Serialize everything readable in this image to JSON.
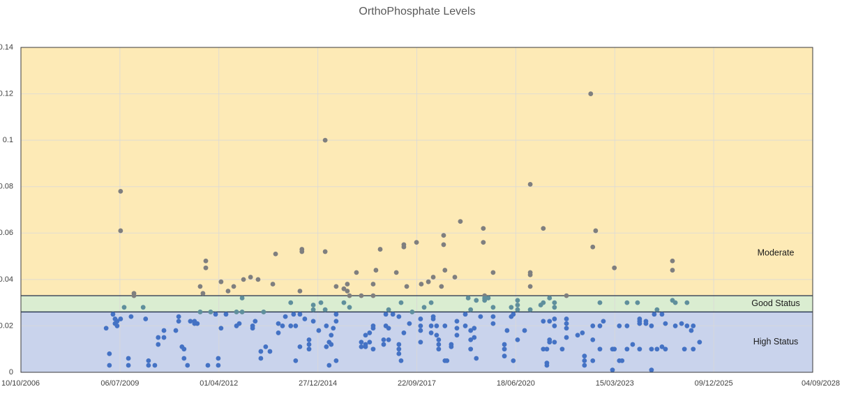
{
  "chart_data": {
    "type": "scatter",
    "title": "OrthoPhosphate Levels",
    "xlim": [
      "10/10/2006",
      "04/09/2028"
    ],
    "xticks": [
      "10/10/2006",
      "06/07/2009",
      "01/04/2012",
      "27/12/2014",
      "22/09/2017",
      "18/06/2020",
      "15/03/2023",
      "09/12/2025",
      "04/09/2028"
    ],
    "ylim": [
      0,
      0.14
    ],
    "yticks": [
      0,
      0.02,
      0.04,
      0.06,
      0.08,
      0.1,
      0.12,
      0.14
    ],
    "grid": true,
    "bands": [
      {
        "label": "High Status",
        "from": 0,
        "to": 0.026,
        "color": "#c9d3ec",
        "point_color": "#4472c4"
      },
      {
        "label": "Good Status",
        "from": 0.026,
        "to": 0.033,
        "color": "#daedd1",
        "point_color": "#5f8f9c"
      },
      {
        "label": "Moderate",
        "from": 0.033,
        "to": 0.14,
        "color": "#fdeab6",
        "point_color": "#7f7f7f"
      }
    ],
    "x": [
      "17/02/2009",
      "22/03/2009",
      "22/03/2009",
      "27/04/2009",
      "18/05/2009",
      "18/05/2009",
      "08/06/2009",
      "08/06/2009",
      "13/07/2009",
      "13/07/2009",
      "13/07/2009",
      "18/08/2009",
      "30/09/2009",
      "30/09/2009",
      "27/10/2009",
      "25/11/2009",
      "25/11/2009",
      "26/02/2010",
      "23/03/2010",
      "21/04/2010",
      "21/04/2010",
      "24/06/2010",
      "28/07/2010",
      "28/07/2010",
      "24/09/2010",
      "24/09/2010",
      "22/01/2011",
      "20/02/2011",
      "20/02/2011",
      "25/03/2011",
      "15/04/2011",
      "15/04/2011",
      "20/05/2011",
      "18/06/2011",
      "30/07/2011",
      "30/07/2011",
      "27/08/2011",
      "25/09/2011",
      "25/09/2011",
      "23/10/2011",
      "21/11/2011",
      "21/11/2011",
      "12/12/2011",
      "09/01/2012",
      "28/02/2012",
      "26/03/2012",
      "26/03/2012",
      "23/04/2012",
      "23/04/2012",
      "12/06/2012",
      "03/07/2012",
      "29/08/2012",
      "26/09/2012",
      "26/09/2012",
      "24/10/2012",
      "22/11/2012",
      "22/11/2012",
      "06/12/2012",
      "15/02/2013",
      "08/03/2013",
      "08/03/2013",
      "03/04/2013",
      "02/05/2013",
      "30/05/2013",
      "30/05/2013",
      "27/06/2013",
      "18/07/2013",
      "30/08/2013",
      "28/09/2013",
      "26/10/2013",
      "23/11/2013",
      "23/11/2013",
      "04/01/2014",
      "02/02/2014",
      "28/03/2014",
      "28/03/2014",
      "26/04/2014",
      "17/05/2014",
      "17/05/2014",
      "29/06/2014",
      "29/06/2014",
      "29/06/2014",
      "19/07/2014",
      "19/07/2014",
      "17/08/2014",
      "29/09/2014",
      "29/09/2014",
      "29/09/2014",
      "11/11/2014",
      "11/11/2014",
      "11/11/2014",
      "05/01/2015",
      "27/01/2015",
      "11/03/2015",
      "11/03/2015",
      "11/03/2015",
      "23/03/2015",
      "23/03/2015",
      "20/04/2015",
      "20/04/2015",
      "11/05/2015",
      "11/05/2015",
      "01/06/2015",
      "30/06/2015",
      "30/06/2015",
      "30/06/2015",
      "30/06/2015",
      "16/09/2015",
      "16/09/2015",
      "21/10/2015",
      "21/10/2015",
      "12/11/2015",
      "12/11/2015",
      "21/01/2016",
      "10/03/2016",
      "10/03/2016",
      "10/03/2016",
      "22/04/2016",
      "22/04/2016",
      "22/04/2016",
      "02/06/2016",
      "02/06/2016",
      "08/07/2016",
      "08/07/2016",
      "08/07/2016",
      "08/07/2016",
      "08/07/2016",
      "05/08/2016",
      "17/09/2016",
      "22/10/2016",
      "22/10/2016",
      "13/11/2016",
      "13/11/2016",
      "11/12/2016",
      "11/12/2016",
      "11/12/2016",
      "23/01/2017",
      "27/02/2017",
      "25/03/2017",
      "25/03/2017",
      "25/03/2017",
      "25/03/2017",
      "16/04/2017",
      "16/04/2017",
      "14/05/2017",
      "14/05/2017",
      "14/05/2017",
      "12/06/2017",
      "09/07/2017",
      "06/08/2017",
      "19/09/2017",
      "30/10/2017",
      "30/10/2017",
      "30/10/2017",
      "30/10/2017",
      "06/11/2017",
      "05/12/2017",
      "17/01/2018",
      "14/02/2018",
      "14/02/2018",
      "14/02/2018",
      "07/03/2018",
      "07/03/2018",
      "07/03/2018",
      "10/04/2018",
      "10/04/2018",
      "01/05/2018",
      "01/05/2018",
      "01/05/2018",
      "29/05/2018",
      "20/06/2018",
      "20/06/2018",
      "03/07/2018",
      "03/07/2018",
      "03/07/2018",
      "24/07/2018",
      "05/09/2018",
      "05/09/2018",
      "11/10/2018",
      "01/11/2018",
      "01/11/2018",
      "01/11/2018",
      "06/12/2018",
      "25/01/2019",
      "25/01/2019",
      "23/02/2019",
      "20/03/2019",
      "20/03/2019",
      "20/03/2019",
      "20/03/2019",
      "25/04/2019",
      "25/04/2019",
      "16/05/2019",
      "16/05/2019",
      "28/06/2019",
      "26/07/2019",
      "26/07/2019",
      "08/08/2019",
      "08/08/2019",
      "08/08/2019",
      "14/09/2019",
      "02/11/2019",
      "02/11/2019",
      "02/11/2019",
      "02/11/2019",
      "24/02/2020",
      "24/02/2020",
      "24/02/2020",
      "22/03/2020",
      "03/05/2020",
      "03/05/2020",
      "24/05/2020",
      "24/05/2020",
      "06/07/2020",
      "06/07/2020",
      "06/07/2020",
      "06/07/2020",
      "15/09/2020",
      "11/11/2020",
      "11/11/2020",
      "11/11/2020",
      "11/11/2020",
      "11/11/2020",
      "25/02/2021",
      "23/03/2021",
      "23/03/2021",
      "23/03/2021",
      "23/03/2021",
      "28/04/2021",
      "28/04/2021",
      "28/04/2021",
      "25/05/2021",
      "25/05/2021",
      "25/05/2021",
      "25/05/2021",
      "14/07/2021",
      "14/07/2021",
      "14/07/2021",
      "14/07/2021",
      "14/07/2021",
      "30/09/2021",
      "12/11/2021",
      "12/11/2021",
      "12/11/2021",
      "12/11/2021",
      "12/11/2021",
      "05/03/2022",
      "22/04/2022",
      "13/05/2022",
      "13/05/2022",
      "13/05/2022",
      "15/07/2022",
      "05/08/2022",
      "05/08/2022",
      "05/08/2022",
      "05/08/2022",
      "03/09/2022",
      "16/10/2022",
      "16/10/2022",
      "16/10/2022",
      "20/11/2022",
      "20/02/2023",
      "20/02/2023",
      "11/03/2023",
      "11/03/2023",
      "30/04/2023",
      "30/04/2023",
      "28/05/2023",
      "17/07/2023",
      "17/07/2023",
      "17/07/2023",
      "12/09/2023",
      "31/10/2023",
      "21/11/2023",
      "21/11/2023",
      "21/11/2023",
      "21/11/2023",
      "24/01/2024",
      "24/01/2024",
      "20/03/2024",
      "20/03/2024",
      "20/03/2024",
      "17/04/2024",
      "15/05/2024",
      "15/05/2024",
      "04/07/2024",
      "04/07/2024",
      "08/08/2024",
      "08/08/2024",
      "18/10/2024",
      "18/10/2024",
      "18/10/2024",
      "16/11/2024",
      "16/11/2024",
      "18/01/2025",
      "16/02/2025",
      "14/03/2025",
      "14/03/2025",
      "26/04/2025",
      "16/05/2025",
      "16/05/2025",
      "19/07/2025"
    ],
    "values": [
      0.019,
      0.008,
      0.003,
      0.025,
      0.021,
      0.023,
      0.022,
      0.02,
      0.078,
      0.061,
      0.023,
      0.028,
      0.006,
      0.003,
      0.024,
      0.034,
      0.033,
      0.028,
      0.023,
      0.005,
      0.003,
      0.003,
      0.015,
      0.012,
      0.018,
      0.015,
      0.018,
      0.024,
      0.022,
      0.011,
      0.01,
      0.006,
      0.003,
      0.022,
      0.022,
      0.021,
      0.021,
      0.037,
      0.026,
      0.034,
      0.048,
      0.045,
      0.003,
      0.026,
      0.025,
      0.006,
      0.003,
      0.039,
      0.019,
      0.025,
      0.035,
      0.037,
      0.026,
      0.02,
      0.021,
      0.032,
      0.026,
      0.04,
      0.041,
      0.02,
      0.019,
      0.022,
      0.04,
      0.006,
      0.009,
      0.026,
      0.011,
      0.009,
      0.038,
      0.051,
      0.021,
      0.017,
      0.02,
      0.024,
      0.03,
      0.02,
      0.025,
      0.005,
      0.02,
      0.035,
      0.025,
      0.011,
      0.053,
      0.052,
      0.023,
      0.014,
      0.012,
      0.01,
      0.029,
      0.027,
      0.022,
      0.018,
      0.03,
      0.1,
      0.052,
      0.027,
      0.02,
      0.011,
      0.013,
      0.003,
      0.016,
      0.012,
      0.019,
      0.037,
      0.025,
      0.022,
      0.005,
      0.036,
      0.03,
      0.035,
      0.038,
      0.033,
      0.028,
      0.043,
      0.033,
      0.013,
      0.011,
      0.016,
      0.012,
      0.011,
      0.013,
      0.017,
      0.038,
      0.033,
      0.02,
      0.019,
      0.01,
      0.044,
      0.053,
      0.014,
      0.012,
      0.025,
      0.02,
      0.027,
      0.019,
      0.014,
      0.025,
      0.043,
      0.024,
      0.012,
      0.01,
      0.008,
      0.03,
      0.005,
      0.055,
      0.054,
      0.017,
      0.037,
      0.021,
      0.026,
      0.056,
      0.023,
      0.02,
      0.018,
      0.013,
      0.038,
      0.028,
      0.039,
      0.03,
      0.02,
      0.017,
      0.041,
      0.023,
      0.024,
      0.02,
      0.016,
      0.01,
      0.012,
      0.014,
      0.037,
      0.059,
      0.055,
      0.044,
      0.02,
      0.005,
      0.005,
      0.012,
      0.011,
      0.041,
      0.022,
      0.019,
      0.016,
      0.065,
      0.025,
      0.02,
      0.032,
      0.027,
      0.018,
      0.014,
      0.01,
      0.019,
      0.015,
      0.031,
      0.006,
      0.024,
      0.062,
      0.056,
      0.033,
      0.032,
      0.031,
      0.032,
      0.043,
      0.028,
      0.024,
      0.021,
      0.012,
      0.01,
      0.007,
      0.018,
      0.028,
      0.024,
      0.005,
      0.025,
      0.031,
      0.029,
      0.027,
      0.014,
      0.018,
      0.081,
      0.043,
      0.042,
      0.037,
      0.027,
      0.029,
      0.062,
      0.03,
      0.022,
      0.01,
      0.004,
      0.003,
      0.01,
      0.032,
      0.022,
      0.014,
      0.013,
      0.03,
      0.028,
      0.023,
      0.02,
      0.013,
      0.01,
      0.033,
      0.023,
      0.021,
      0.019,
      0.015,
      0.016,
      0.017,
      0.007,
      0.005,
      0.003,
      0.12,
      0.054,
      0.02,
      0.014,
      0.005,
      0.061,
      0.03,
      0.02,
      0.01,
      0.022,
      0.01,
      0.001,
      0.045,
      0.01,
      0.02,
      0.005,
      0.005,
      0.03,
      0.02,
      0.01,
      0.012,
      0.03,
      0.023,
      0.022,
      0.021,
      0.01,
      0.022,
      0.021,
      0.02,
      0.01,
      0.001,
      0.025,
      0.027,
      0.01,
      0.025,
      0.011,
      0.021,
      0.01,
      0.048,
      0.044,
      0.031,
      0.03,
      0.02,
      0.021,
      0.01,
      0.03,
      0.02,
      0.018,
      0.02,
      0.01,
      0.013
    ]
  }
}
